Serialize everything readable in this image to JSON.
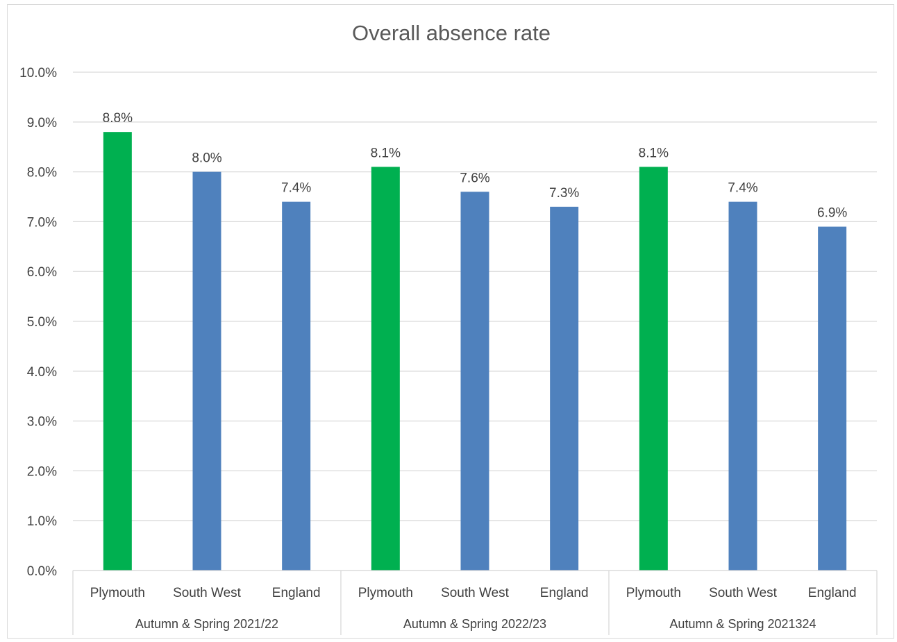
{
  "chart_data": {
    "type": "bar",
    "title": "Overall absence rate",
    "xlabel": "",
    "ylabel": "",
    "ylim": [
      0,
      10
    ],
    "y_ticks": [
      "0.0%",
      "1.0%",
      "2.0%",
      "3.0%",
      "4.0%",
      "5.0%",
      "6.0%",
      "7.0%",
      "8.0%",
      "9.0%",
      "10.0%"
    ],
    "grid": true,
    "legend": "none",
    "groups": [
      {
        "label": "Autumn & Spring 2021/22",
        "categories": [
          "Plymouth",
          "South West",
          "England"
        ],
        "values": [
          8.8,
          8.0,
          7.4
        ],
        "data_labels": [
          "8.8%",
          "8.0%",
          "7.4%"
        ]
      },
      {
        "label": "Autumn & Spring 2022/23",
        "categories": [
          "Plymouth",
          "South West",
          "England"
        ],
        "values": [
          8.1,
          7.6,
          7.3
        ],
        "data_labels": [
          "8.1%",
          "7.6%",
          "7.3%"
        ]
      },
      {
        "label": "Autumn & Spring 2021324",
        "categories": [
          "Plymouth",
          "South West",
          "England"
        ],
        "values": [
          8.1,
          7.4,
          6.9
        ],
        "data_labels": [
          "8.1%",
          "7.4%",
          "6.9%"
        ]
      }
    ],
    "colors": {
      "Plymouth": "#00b050",
      "South West": "#4f81bd",
      "England": "#4f81bd"
    },
    "gridline_color": "#d9d9d9"
  }
}
